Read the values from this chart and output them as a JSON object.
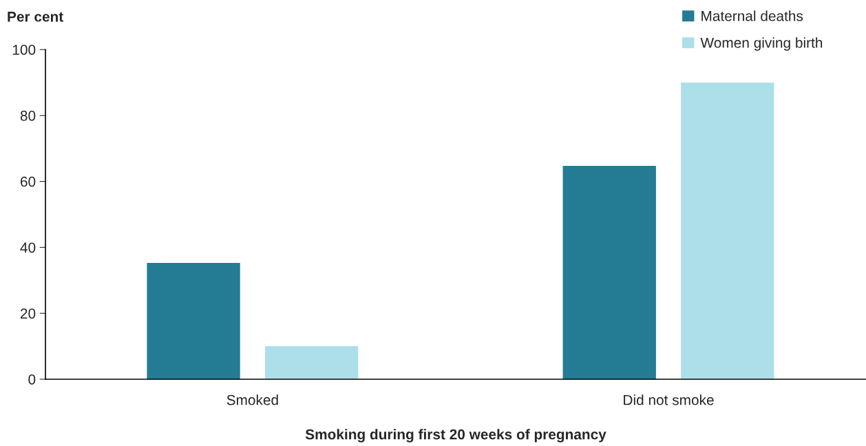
{
  "chart_data": {
    "type": "bar",
    "ylabel": "Per cent",
    "xlabel": "Smoking during first 20 weeks of pregnancy",
    "categories": [
      "Smoked",
      "Did not smoke"
    ],
    "series": [
      {
        "name": "Maternal deaths",
        "color": "#247c94",
        "values": [
          35.3,
          64.7
        ]
      },
      {
        "name": "Women giving birth",
        "color": "#addfe9",
        "values": [
          10,
          90
        ]
      }
    ],
    "ylim": [
      0,
      100
    ],
    "yticks": [
      0,
      20,
      40,
      60,
      80,
      100
    ],
    "grid": false,
    "legend": "top right"
  }
}
